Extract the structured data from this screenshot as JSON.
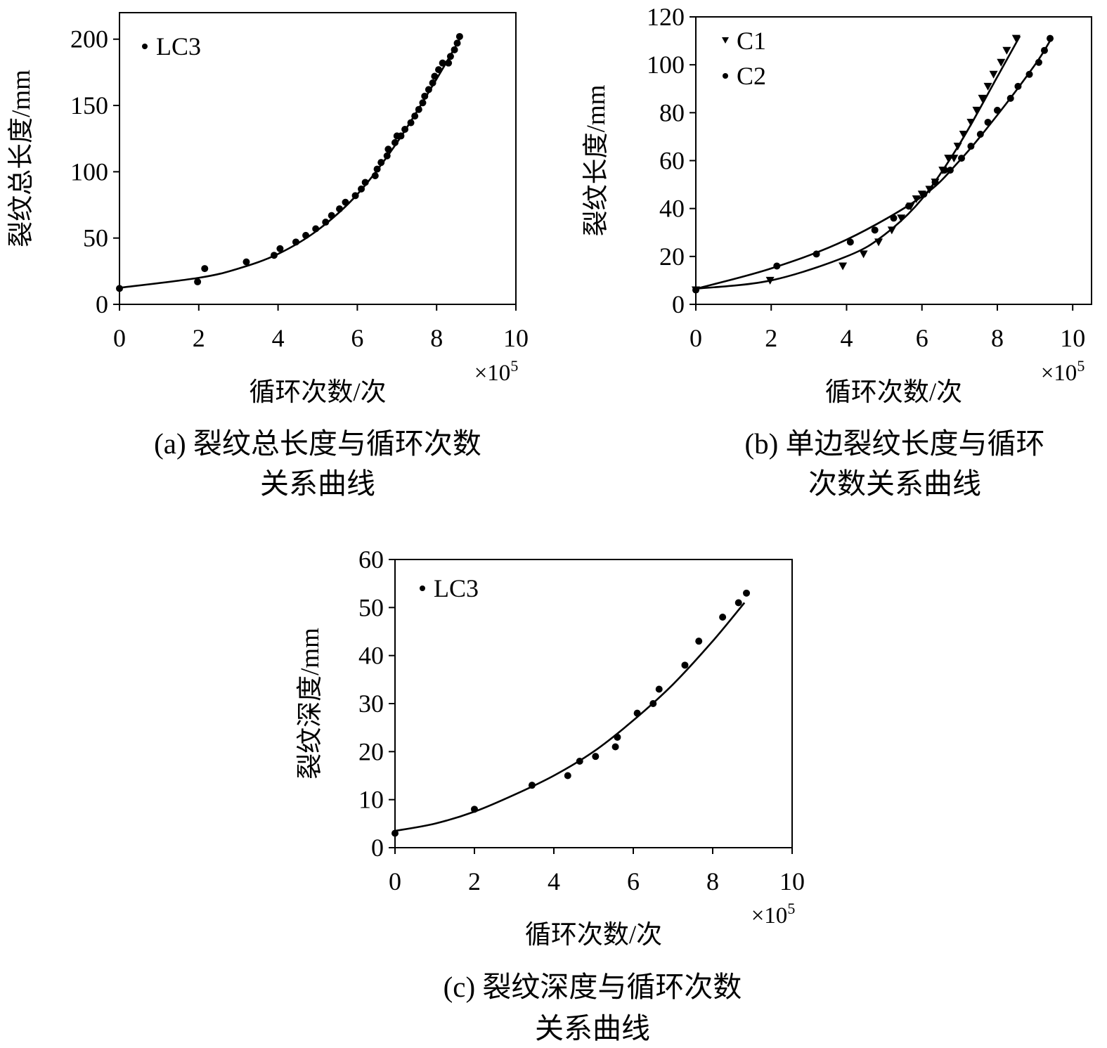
{
  "chart_data": [
    {
      "id": "a",
      "type": "scatter",
      "xlabel": "循环次数/次",
      "ylabel": "裂纹总长度/mm",
      "x_multiplier": "×10",
      "x_multiplier_exp": "5",
      "xlim": [
        0,
        10
      ],
      "ylim": [
        0,
        220
      ],
      "xticks": [
        "0",
        "2",
        "4",
        "6",
        "8",
        "10"
      ],
      "yticks": [
        "0",
        "50",
        "100",
        "150",
        "200"
      ],
      "legend_position": "top-left",
      "caption_line1": "(a) 裂纹总长度与循环次数",
      "caption_line2": "关系曲线",
      "series": [
        {
          "name": "LC3",
          "marker": "circle",
          "points": [
            [
              0,
              12
            ],
            [
              1.97,
              17
            ],
            [
              2.15,
              27
            ],
            [
              3.2,
              32
            ],
            [
              3.9,
              37
            ],
            [
              4.05,
              42
            ],
            [
              4.45,
              47
            ],
            [
              4.7,
              52
            ],
            [
              4.95,
              57
            ],
            [
              5.2,
              62
            ],
            [
              5.35,
              67
            ],
            [
              5.55,
              72
            ],
            [
              5.7,
              77
            ],
            [
              5.95,
              82
            ],
            [
              6.1,
              87
            ],
            [
              6.2,
              92
            ],
            [
              6.45,
              97
            ],
            [
              6.5,
              102
            ],
            [
              6.6,
              107
            ],
            [
              6.75,
              112
            ],
            [
              6.78,
              117
            ],
            [
              6.95,
              122
            ],
            [
              7.0,
              127
            ],
            [
              7.1,
              127
            ],
            [
              7.2,
              132
            ],
            [
              7.35,
              137
            ],
            [
              7.45,
              142
            ],
            [
              7.55,
              147
            ],
            [
              7.65,
              152
            ],
            [
              7.7,
              157
            ],
            [
              7.8,
              162
            ],
            [
              7.9,
              167
            ],
            [
              7.95,
              172
            ],
            [
              8.05,
              177
            ],
            [
              8.15,
              182
            ],
            [
              8.3,
              182
            ],
            [
              8.35,
              187
            ],
            [
              8.45,
              192
            ],
            [
              8.52,
              197
            ],
            [
              8.58,
              202
            ]
          ],
          "fit": [
            [
              0,
              12.5
            ],
            [
              2,
              20
            ],
            [
              3,
              27
            ],
            [
              4,
              38
            ],
            [
              5,
              56
            ],
            [
              6,
              83
            ],
            [
              7,
              122
            ],
            [
              8,
              170
            ],
            [
              8.6,
              201
            ]
          ]
        }
      ]
    },
    {
      "id": "b",
      "type": "scatter",
      "xlabel": "循环次数/次",
      "ylabel": "裂纹长度/mm",
      "x_multiplier": "×10",
      "x_multiplier_exp": "5",
      "xlim": [
        0,
        10.5
      ],
      "ylim": [
        0,
        120
      ],
      "xticks": [
        "0",
        "2",
        "4",
        "6",
        "8",
        "10"
      ],
      "yticks": [
        "0",
        "20",
        "40",
        "60",
        "80",
        "100",
        "120"
      ],
      "legend_position": "top-left",
      "caption_line1": "(b) 单边裂纹长度与循环",
      "caption_line2": "次数关系曲线",
      "series": [
        {
          "name": "C1",
          "marker": "triangle-down",
          "points": [
            [
              0,
              6
            ],
            [
              1.97,
              10
            ],
            [
              3.9,
              16
            ],
            [
              4.45,
              21
            ],
            [
              4.85,
              26
            ],
            [
              5.2,
              31
            ],
            [
              5.45,
              36
            ],
            [
              5.7,
              41
            ],
            [
              5.85,
              44
            ],
            [
              6.0,
              46
            ],
            [
              6.2,
              48
            ],
            [
              6.35,
              51
            ],
            [
              6.55,
              56
            ],
            [
              6.7,
              61
            ],
            [
              6.85,
              61
            ],
            [
              6.95,
              66
            ],
            [
              7.1,
              71
            ],
            [
              7.3,
              76
            ],
            [
              7.45,
              81
            ],
            [
              7.6,
              86
            ],
            [
              7.75,
              91
            ],
            [
              7.9,
              96
            ],
            [
              8.1,
              101
            ],
            [
              8.25,
              106
            ],
            [
              8.5,
              111
            ]
          ],
          "fit": [
            [
              0,
              6.5
            ],
            [
              2,
              10
            ],
            [
              4,
              20
            ],
            [
              5,
              29
            ],
            [
              6,
              44
            ],
            [
              7,
              67
            ],
            [
              8,
              95
            ],
            [
              8.6,
              112
            ]
          ]
        },
        {
          "name": "C2",
          "marker": "circle",
          "points": [
            [
              0,
              6
            ],
            [
              2.15,
              16
            ],
            [
              3.2,
              21
            ],
            [
              4.1,
              26
            ],
            [
              4.75,
              31
            ],
            [
              5.25,
              36
            ],
            [
              5.65,
              41
            ],
            [
              6.05,
              46
            ],
            [
              6.35,
              51
            ],
            [
              6.6,
              56
            ],
            [
              6.75,
              56
            ],
            [
              7.05,
              61
            ],
            [
              7.3,
              66
            ],
            [
              7.55,
              71
            ],
            [
              7.75,
              76
            ],
            [
              8.0,
              81
            ],
            [
              8.35,
              86
            ],
            [
              8.55,
              91
            ],
            [
              8.85,
              96
            ],
            [
              9.1,
              101
            ],
            [
              9.25,
              106
            ],
            [
              9.4,
              111
            ]
          ],
          "fit": [
            [
              0,
              6.5
            ],
            [
              2,
              15
            ],
            [
              4,
              27
            ],
            [
              6,
              45
            ],
            [
              7,
              60
            ],
            [
              8,
              79
            ],
            [
              9,
              100
            ],
            [
              9.4,
              110
            ]
          ]
        }
      ]
    },
    {
      "id": "c",
      "type": "scatter",
      "xlabel": "循环次数/次",
      "ylabel": "裂纹深度/mm",
      "x_multiplier": "×10",
      "x_multiplier_exp": "5",
      "xlim": [
        0,
        10
      ],
      "ylim": [
        0,
        60
      ],
      "xticks": [
        "0",
        "2",
        "4",
        "6",
        "8",
        "10"
      ],
      "yticks": [
        "0",
        "10",
        "20",
        "30",
        "40",
        "50",
        "60"
      ],
      "legend_position": "top-left",
      "caption_line1": "(c) 裂纹深度与循环次数",
      "caption_line2": "关系曲线",
      "series": [
        {
          "name": "LC3",
          "marker": "circle",
          "points": [
            [
              0,
              3
            ],
            [
              2.0,
              8
            ],
            [
              3.45,
              13
            ],
            [
              4.35,
              15
            ],
            [
              4.65,
              18
            ],
            [
              5.05,
              19
            ],
            [
              5.55,
              21
            ],
            [
              5.6,
              23
            ],
            [
              6.1,
              28
            ],
            [
              6.5,
              30
            ],
            [
              6.65,
              33
            ],
            [
              7.3,
              38
            ],
            [
              7.65,
              43
            ],
            [
              8.25,
              48
            ],
            [
              8.65,
              51
            ],
            [
              8.85,
              53
            ]
          ],
          "fit": [
            [
              0,
              3.5
            ],
            [
              1,
              5
            ],
            [
              2,
              7.5
            ],
            [
              3,
              11
            ],
            [
              4,
              15
            ],
            [
              5,
              20
            ],
            [
              6,
              26.5
            ],
            [
              7,
              34
            ],
            [
              8,
              43
            ],
            [
              8.8,
              51
            ]
          ]
        }
      ]
    }
  ]
}
